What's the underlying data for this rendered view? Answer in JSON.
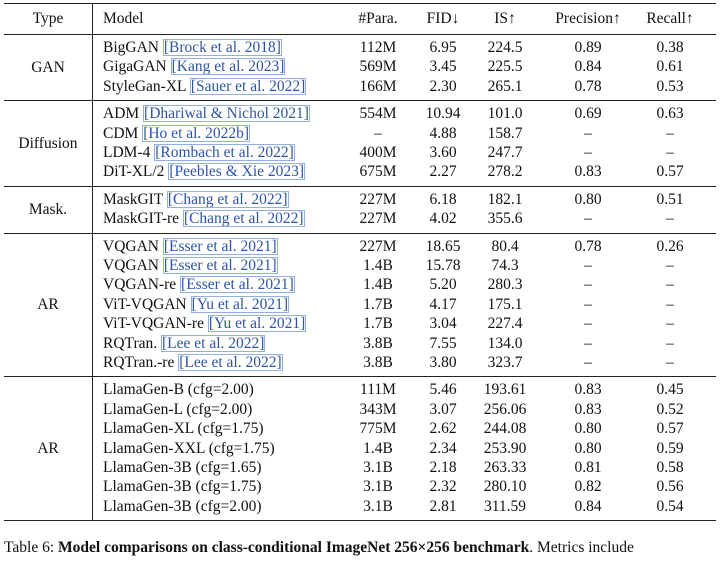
{
  "table": {
    "header": [
      "Type",
      "Model",
      "#Para.",
      "FID↓",
      "IS↑",
      "Precision↑",
      "Recall↑"
    ],
    "groups": [
      {
        "type": "GAN",
        "rows": [
          {
            "model": "BigGAN",
            "cite": "[Brock et al. 2018]",
            "params": "112M",
            "fid": "6.95",
            "is": "224.5",
            "precision": "0.89",
            "recall": "0.38"
          },
          {
            "model": "GigaGAN",
            "cite": "[Kang et al. 2023]",
            "params": "569M",
            "fid": "3.45",
            "is": "225.5",
            "precision": "0.84",
            "recall": "0.61"
          },
          {
            "model": "StyleGan-XL",
            "cite": "[Sauer et al. 2022]",
            "params": "166M",
            "fid": "2.30",
            "is": "265.1",
            "precision": "0.78",
            "recall": "0.53"
          }
        ]
      },
      {
        "type": "Diffusion",
        "rows": [
          {
            "model": "ADM",
            "cite": "[Dhariwal & Nichol 2021]",
            "params": "554M",
            "fid": "10.94",
            "is": "101.0",
            "precision": "0.69",
            "recall": "0.63"
          },
          {
            "model": "CDM",
            "cite": "[Ho et al. 2022b]",
            "params": "–",
            "fid": "4.88",
            "is": "158.7",
            "precision": "–",
            "recall": "–"
          },
          {
            "model": "LDM-4",
            "cite": "[Rombach et al. 2022]",
            "params": "400M",
            "fid": "3.60",
            "is": "247.7",
            "precision": "–",
            "recall": "–"
          },
          {
            "model": "DiT-XL/2",
            "cite": "[Peebles & Xie 2023]",
            "params": "675M",
            "fid": "2.27",
            "is": "278.2",
            "precision": "0.83",
            "recall": "0.57"
          }
        ]
      },
      {
        "type": "Mask.",
        "rows": [
          {
            "model": "MaskGIT",
            "cite": "[Chang et al. 2022]",
            "params": "227M",
            "fid": "6.18",
            "is": "182.1",
            "precision": "0.80",
            "recall": "0.51"
          },
          {
            "model": "MaskGIT-re",
            "cite": "[Chang et al. 2022]",
            "params": "227M",
            "fid": "4.02",
            "is": "355.6",
            "precision": "–",
            "recall": "–"
          }
        ]
      },
      {
        "type": "AR",
        "rows": [
          {
            "model": "VQGAN",
            "cite": "[Esser et al. 2021]",
            "params": "227M",
            "fid": "18.65",
            "is": "80.4",
            "precision": "0.78",
            "recall": "0.26"
          },
          {
            "model": "VQGAN",
            "cite": "[Esser et al. 2021]",
            "params": "1.4B",
            "fid": "15.78",
            "is": "74.3",
            "precision": "–",
            "recall": "–"
          },
          {
            "model": "VQGAN-re",
            "cite": "[Esser et al. 2021]",
            "params": "1.4B",
            "fid": "5.20",
            "is": "280.3",
            "precision": "–",
            "recall": "–"
          },
          {
            "model": "ViT-VQGAN",
            "cite": "[Yu et al. 2021]",
            "params": "1.7B",
            "fid": "4.17",
            "is": "175.1",
            "precision": "–",
            "recall": "–"
          },
          {
            "model": "ViT-VQGAN-re",
            "cite": "[Yu et al. 2021]",
            "params": "1.7B",
            "fid": "3.04",
            "is": "227.4",
            "precision": "–",
            "recall": "–"
          },
          {
            "model": "RQTran.",
            "cite": "[Lee et al. 2022]",
            "params": "3.8B",
            "fid": "7.55",
            "is": "134.0",
            "precision": "–",
            "recall": "–"
          },
          {
            "model": "RQTran.-re",
            "cite": "[Lee et al. 2022]",
            "params": "3.8B",
            "fid": "3.80",
            "is": "323.7",
            "precision": "–",
            "recall": "–"
          }
        ]
      },
      {
        "type": "AR",
        "rows": [
          {
            "model": "LlamaGen-B (cfg=2.00)",
            "params": "111M",
            "fid": "5.46",
            "is": "193.61",
            "precision": "0.83",
            "recall": "0.45"
          },
          {
            "model": "LlamaGen-L (cfg=2.00)",
            "params": "343M",
            "fid": "3.07",
            "is": "256.06",
            "precision": "0.83",
            "recall": "0.52"
          },
          {
            "model": "LlamaGen-XL (cfg=1.75)",
            "params": "775M",
            "fid": "2.62",
            "is": "244.08",
            "precision": "0.80",
            "recall": "0.57"
          },
          {
            "model": "LlamaGen-XXL (cfg=1.75)",
            "params": "1.4B",
            "fid": "2.34",
            "is": "253.90",
            "precision": "0.80",
            "recall": "0.59"
          },
          {
            "model": "LlamaGen-3B (cfg=1.65)",
            "params": "3.1B",
            "fid": "2.18",
            "is": "263.33",
            "precision": "0.81",
            "recall": "0.58"
          },
          {
            "model": "LlamaGen-3B (cfg=1.75)",
            "params": "3.1B",
            "fid": "2.32",
            "is": "280.10",
            "precision": "0.82",
            "recall": "0.56"
          },
          {
            "model": "LlamaGen-3B (cfg=2.00)",
            "params": "3.1B",
            "fid": "2.81",
            "is": "311.59",
            "precision": "0.84",
            "recall": "0.54"
          }
        ]
      }
    ]
  },
  "caption": {
    "label": "Table 6:",
    "title": "Model comparisons on class-conditional ImageNet 256×256 benchmark",
    "text": ". Metrics include"
  }
}
